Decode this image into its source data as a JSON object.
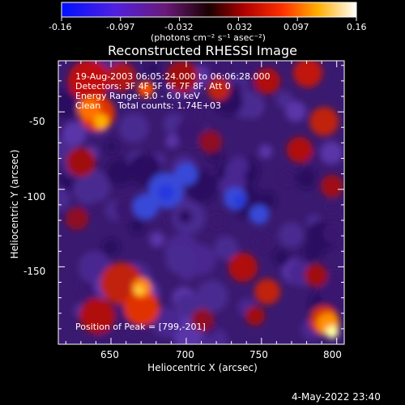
{
  "colorbar": {
    "min_label": "-0.16",
    "tick_labels": [
      "-0.16",
      "-0.097",
      "-0.032",
      "0.032",
      "0.097",
      "0.16"
    ],
    "units_text": "(photons cm⁻² s⁻¹ asec⁻²)",
    "colormap": "blue-purple-red-orange-yellow-white (RHESSI 'Hot' variant)"
  },
  "figure": {
    "title": "Reconstructed RHESSI Image",
    "xlabel": "Heliocentric X (arcsec)",
    "ylabel": "Heliocentric Y (arcsec)",
    "x_ticks": [
      "650",
      "700",
      "750",
      "800"
    ],
    "y_ticks": [
      "-50",
      "-100",
      "-150"
    ],
    "xlim": [
      615,
      805
    ],
    "ylim": [
      -200,
      -17
    ],
    "overlay": {
      "line1": "19-Aug-2003 06:05:24.000 to 06:06:28.000",
      "line2": "Detectors: 3F 4F 5F 6F 7F 8F, Att 0",
      "line3": "Energy Range: 3.0 - 6.0 keV",
      "line4": "Clean      Total counts: 1.74E+03"
    },
    "peak_text": "Position of Peak = [799,-201]"
  },
  "footer": {
    "timestamp": "4-May-2022 23:40"
  },
  "colors": {
    "background": "#000000",
    "text": "#ffffff",
    "frame": "#ffffff"
  }
}
